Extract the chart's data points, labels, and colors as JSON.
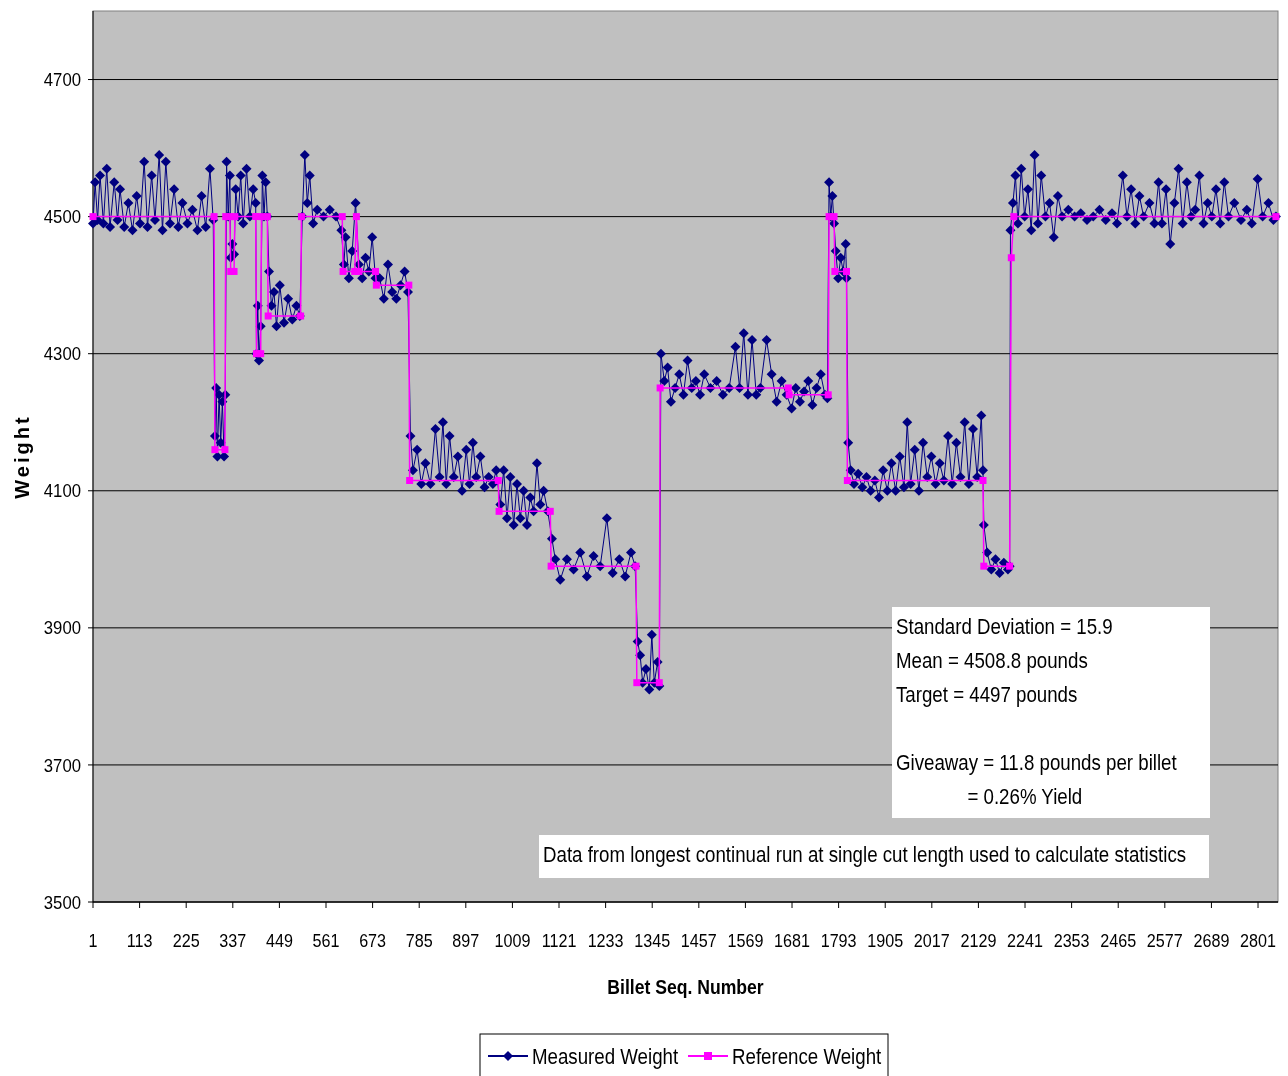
{
  "chart_data": {
    "type": "line",
    "xlabel": "Billet Seq. Number",
    "ylabel": "Weight",
    "xlim": [
      1,
      2849
    ],
    "xticks": [
      1,
      113,
      225,
      337,
      449,
      561,
      673,
      785,
      897,
      1009,
      1121,
      1233,
      1345,
      1457,
      1569,
      1681,
      1793,
      1905,
      2017,
      2129,
      2241,
      2353,
      2465,
      2577,
      2689,
      2801
    ],
    "ylim": [
      3500,
      4800
    ],
    "yticks": [
      3500,
      3700,
      3900,
      4100,
      4300,
      4500,
      4700
    ],
    "grid": "y",
    "legend": "bottom",
    "annotations": [
      "Standard Deviation = 15.9",
      "Mean = 4508.8 pounds",
      "Target = 4497 pounds",
      "Giveaway = 11.8 pounds per billet",
      "= 0.26% Yield",
      "Data from longest continual run at single cut length used to calculate statistics"
    ],
    "series": [
      {
        "name": "Measured Weight",
        "color": "#000080",
        "marker": "diamond",
        "x": [
          1,
          6,
          12,
          18,
          26,
          34,
          42,
          52,
          60,
          66,
          76,
          86,
          96,
          106,
          114,
          124,
          132,
          142,
          150,
          160,
          168,
          176,
          186,
          196,
          206,
          216,
          228,
          240,
          252,
          262,
          272,
          282,
          290,
          294,
          297,
          300,
          304,
          308,
          312,
          316,
          319,
          322,
          326,
          330,
          332,
          336,
          340,
          344,
          350,
          356,
          362,
          370,
          378,
          386,
          392,
          394,
          397,
          400,
          404,
          408,
          412,
          416,
          420,
          424,
          430,
          436,
          442,
          450,
          460,
          470,
          480,
          490,
          498,
          504,
          510,
          516,
          522,
          530,
          540,
          555,
          570,
          585,
          598,
          604,
          608,
          616,
          624,
          632,
          640,
          648,
          656,
          664,
          672,
          680,
          690,
          700,
          710,
          720,
          730,
          740,
          750,
          758,
          764,
          770,
          780,
          790,
          800,
          812,
          824,
          834,
          842,
          850,
          858,
          868,
          878,
          888,
          898,
          906,
          914,
          922,
          932,
          942,
          952,
          962,
          970,
          980,
          988,
          996,
          1004,
          1012,
          1020,
          1028,
          1036,
          1044,
          1052,
          1060,
          1068,
          1076,
          1084,
          1094,
          1104,
          1112,
          1124,
          1140,
          1156,
          1172,
          1188,
          1204,
          1220,
          1236,
          1250,
          1266,
          1280,
          1294,
          1304,
          1310,
          1316,
          1322,
          1330,
          1338,
          1344,
          1350,
          1358,
          1362,
          1366,
          1374,
          1382,
          1390,
          1400,
          1410,
          1420,
          1430,
          1440,
          1450,
          1460,
          1470,
          1485,
          1500,
          1515,
          1530,
          1545,
          1555,
          1565,
          1575,
          1585,
          1595,
          1605,
          1620,
          1632,
          1644,
          1656,
          1668,
          1680,
          1690,
          1700,
          1710,
          1720,
          1730,
          1740,
          1750,
          1760,
          1766,
          1770,
          1774,
          1778,
          1782,
          1786,
          1792,
          1798,
          1804,
          1810,
          1812,
          1816,
          1822,
          1830,
          1840,
          1850,
          1860,
          1870,
          1880,
          1890,
          1900,
          1910,
          1920,
          1930,
          1940,
          1950,
          1958,
          1966,
          1976,
          1986,
          1996,
          2006,
          2016,
          2026,
          2036,
          2046,
          2056,
          2066,
          2076,
          2086,
          2096,
          2106,
          2116,
          2126,
          2136,
          2140,
          2142,
          2150,
          2160,
          2170,
          2180,
          2190,
          2200,
          2204,
          2206,
          2212,
          2218,
          2224,
          2232,
          2240,
          2248,
          2256,
          2264,
          2272,
          2280,
          2290,
          2300,
          2310,
          2320,
          2330,
          2345,
          2360,
          2375,
          2390,
          2405,
          2420,
          2435,
          2450,
          2462,
          2476,
          2486,
          2496,
          2506,
          2516,
          2526,
          2540,
          2552,
          2562,
          2570,
          2580,
          2590,
          2600,
          2610,
          2620,
          2630,
          2640,
          2650,
          2660,
          2670,
          2680,
          2690,
          2700,
          2710,
          2720,
          2730,
          2744,
          2760,
          2774,
          2786,
          2800,
          2812,
          2826,
          2838,
          2844
        ],
        "values": [
          4490,
          4550,
          4495,
          4560,
          4490,
          4570,
          4485,
          4550,
          4495,
          4540,
          4485,
          4520,
          4480,
          4530,
          4490,
          4580,
          4485,
          4560,
          4495,
          4590,
          4480,
          4580,
          4490,
          4540,
          4485,
          4520,
          4490,
          4510,
          4480,
          4530,
          4485,
          4570,
          4495,
          4180,
          4250,
          4150,
          4240,
          4170,
          4230,
          4150,
          4240,
          4580,
          4500,
          4560,
          4440,
          4460,
          4445,
          4540,
          4500,
          4560,
          4490,
          4570,
          4500,
          4540,
          4520,
          4300,
          4370,
          4290,
          4340,
          4560,
          4500,
          4550,
          4500,
          4420,
          4370,
          4390,
          4340,
          4400,
          4345,
          4380,
          4350,
          4370,
          4355,
          4500,
          4590,
          4520,
          4560,
          4490,
          4510,
          4500,
          4510,
          4500,
          4480,
          4430,
          4470,
          4410,
          4450,
          4520,
          4430,
          4410,
          4440,
          4420,
          4470,
          4410,
          4410,
          4380,
          4430,
          4390,
          4380,
          4400,
          4420,
          4390,
          4180,
          4130,
          4160,
          4110,
          4140,
          4110,
          4190,
          4120,
          4200,
          4110,
          4180,
          4120,
          4150,
          4100,
          4160,
          4110,
          4170,
          4120,
          4150,
          4105,
          4120,
          4110,
          4130,
          4080,
          4130,
          4060,
          4120,
          4050,
          4110,
          4060,
          4100,
          4050,
          4090,
          4070,
          4140,
          4080,
          4100,
          4070,
          4030,
          4000,
          3970,
          4000,
          3985,
          4010,
          3975,
          4005,
          3990,
          4060,
          3980,
          4000,
          3975,
          4010,
          3990,
          3880,
          3860,
          3820,
          3840,
          3810,
          3890,
          3820,
          3850,
          3815,
          4300,
          4260,
          4280,
          4230,
          4250,
          4270,
          4240,
          4290,
          4250,
          4260,
          4240,
          4270,
          4250,
          4260,
          4240,
          4250,
          4310,
          4250,
          4330,
          4240,
          4320,
          4240,
          4250,
          4320,
          4270,
          4230,
          4260,
          4240,
          4220,
          4250,
          4230,
          4245,
          4260,
          4225,
          4250,
          4270,
          4240,
          4235,
          4550,
          4500,
          4530,
          4490,
          4450,
          4410,
          4440,
          4420,
          4460,
          4410,
          4170,
          4130,
          4110,
          4125,
          4105,
          4120,
          4100,
          4115,
          4090,
          4130,
          4100,
          4140,
          4100,
          4150,
          4105,
          4200,
          4110,
          4160,
          4100,
          4170,
          4120,
          4150,
          4110,
          4140,
          4115,
          4180,
          4110,
          4170,
          4120,
          4200,
          4110,
          4190,
          4120,
          4210,
          4130,
          4050,
          4010,
          3985,
          4000,
          3980,
          3995,
          3985,
          3990,
          4480,
          4520,
          4560,
          4490,
          4570,
          4500,
          4540,
          4480,
          4590,
          4490,
          4560,
          4500,
          4520,
          4470,
          4530,
          4500,
          4510,
          4500,
          4505,
          4495,
          4500,
          4510,
          4495,
          4505,
          4490,
          4560,
          4500,
          4540,
          4490,
          4530,
          4500,
          4520,
          4490,
          4550,
          4490,
          4540,
          4460,
          4520,
          4570,
          4490,
          4550,
          4500,
          4510,
          4560,
          4490,
          4520,
          4500,
          4540,
          4490,
          4550,
          4500,
          4520,
          4495,
          4510,
          4490,
          4555,
          4500,
          4520,
          4495,
          4500
        ]
      },
      {
        "name": "Reference Weight",
        "color": "#ff00ff",
        "marker": "square",
        "x": [
          1,
          292,
          294,
          318,
          320,
          330,
          332,
          340,
          342,
          392,
          394,
          404,
          406,
          420,
          422,
          500,
          502,
          600,
          602,
          630,
          634,
          640,
          680,
          682,
          760,
          762,
          975,
          977,
          1100,
          1102,
          1306,
          1308,
          1362,
          1364,
          1672,
          1674,
          1768,
          1770,
          1782,
          1784,
          1812,
          1814,
          2140,
          2142,
          2204,
          2208,
          2214,
          2844
        ],
        "values": [
          4500,
          4500,
          4160,
          4160,
          4500,
          4500,
          4420,
          4420,
          4500,
          4500,
          4300,
          4300,
          4500,
          4500,
          4355,
          4355,
          4500,
          4500,
          4420,
          4420,
          4500,
          4420,
          4420,
          4400,
          4400,
          4115,
          4115,
          4070,
          4070,
          3990,
          3990,
          3820,
          3820,
          4250,
          4250,
          4240,
          4240,
          4500,
          4500,
          4420,
          4420,
          4115,
          4115,
          3990,
          3990,
          4440,
          4500,
          4500
        ]
      }
    ]
  }
}
